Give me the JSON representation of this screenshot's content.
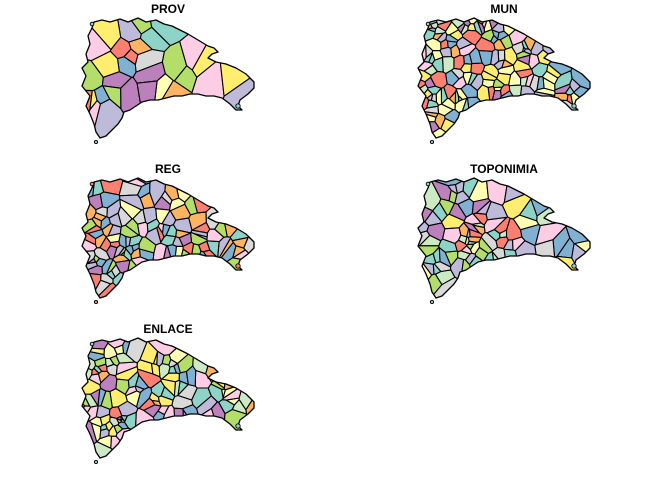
{
  "maps": [
    {
      "id": "prov",
      "title": "PROV",
      "palette": [
        "#8DD3C7",
        "#FFFFB3",
        "#BEBADA",
        "#FB8072",
        "#80B1D3",
        "#FDB462",
        "#B3DE69",
        "#FCCDE5",
        "#D9D9D9",
        "#BC80BD",
        "#CCEBC5",
        "#FFED6F"
      ]
    },
    {
      "id": "mun",
      "title": "MUN",
      "palette": [
        "#8DD3C7",
        "#FFFFB3",
        "#BEBADA",
        "#FB8072",
        "#80B1D3",
        "#FDB462",
        "#B3DE69",
        "#FCCDE5",
        "#D9D9D9",
        "#BC80BD",
        "#CCEBC5",
        "#FFED6F"
      ]
    },
    {
      "id": "reg",
      "title": "REG",
      "palette": [
        "#FB8072",
        "#B3DE69",
        "#FDB462",
        "#8DD3C7",
        "#FFFFB3",
        "#BEBADA",
        "#80B1D3",
        "#BC80BD",
        "#D9D9D9",
        "#FCCDE5"
      ]
    },
    {
      "id": "toponimia",
      "title": "TOPONIMIA",
      "palette": [
        "#8DD3C7",
        "#FFFFB3",
        "#BEBADA",
        "#FB8072",
        "#80B1D3",
        "#FDB462",
        "#B3DE69",
        "#FCCDE5",
        "#D9D9D9",
        "#BC80BD",
        "#CCEBC5",
        "#FFED6F"
      ]
    },
    {
      "id": "enlace",
      "title": "ENLACE",
      "palette": [
        "#8DD3C7",
        "#FFFFB3",
        "#BEBADA",
        "#FB8072",
        "#80B1D3",
        "#FDB462",
        "#B3DE69",
        "#FCCDE5",
        "#D9D9D9",
        "#BC80BD",
        "#CCEBC5",
        "#FFED6F"
      ]
    }
  ]
}
